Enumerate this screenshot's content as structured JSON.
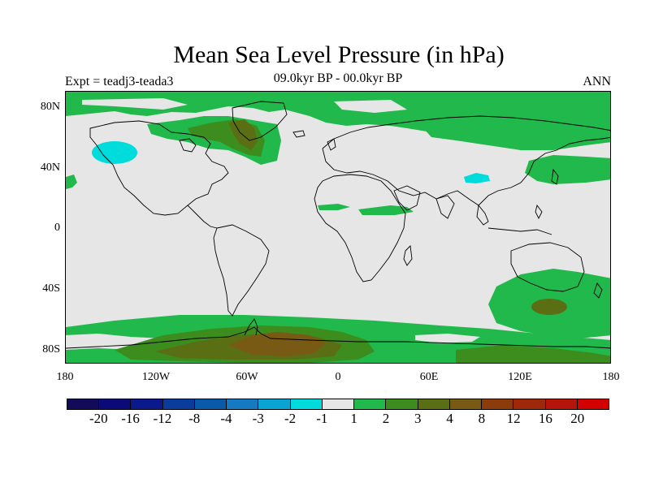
{
  "header": {
    "title": "Mean Sea Level Pressure (in hPa)",
    "experiment": "Expt = teadj3-teada3",
    "period": "09.0kyr BP - 00.0kyr BP",
    "season": "ANN"
  },
  "axes": {
    "latitude_labels": [
      "80N",
      "40N",
      "0",
      "40S",
      "80S"
    ],
    "longitude_labels": [
      "180",
      "120W",
      "60W",
      "0",
      "60E",
      "120E",
      "180"
    ]
  },
  "colorbar": {
    "labels": [
      "-20",
      "-16",
      "-12",
      "-8",
      "-4",
      "-3",
      "-2",
      "-1",
      "1",
      "2",
      "3",
      "4",
      "8",
      "12",
      "16",
      "20"
    ],
    "colors": [
      "#140a5a",
      "#0a0a78",
      "#0a1a8c",
      "#0a3c9c",
      "#0a5aaa",
      "#147ac2",
      "#0aa4d2",
      "#00dcdc",
      "#e6e6e6",
      "#21b94b",
      "#3c8c1e",
      "#5a6e14",
      "#785a14",
      "#8c3c0a",
      "#a0280a",
      "#b4140a",
      "#d20000"
    ]
  },
  "chart_data": {
    "type": "filled-contour-map",
    "title": "Mean Sea Level Pressure (in hPa)",
    "subtitle": "09.0kyr BP - 00.0kyr BP",
    "experiment": "Expt = teadj3-teada3",
    "season": "ANN",
    "xlim": [
      -180,
      180
    ],
    "ylim": [
      -90,
      90
    ],
    "contour_levels": [
      -20,
      -16,
      -12,
      -8,
      -4,
      -3,
      -2,
      -1,
      1,
      2,
      3,
      4,
      8,
      12,
      16,
      20
    ],
    "map_regions": [
      {
        "region": "Arctic band 70N-90N",
        "level": "1 to 2"
      },
      {
        "region": "Greenland / Baffin Bay",
        "level": "3 to 4"
      },
      {
        "region": "Canadian Arctic",
        "level": "2 to 3"
      },
      {
        "region": "North Pacific ~35N 150W",
        "level": "-2 to -1"
      },
      {
        "region": "Tibetan Plateau ~35N 90E",
        "level": "-2 to -1"
      },
      {
        "region": "Siberia / Arctic Ocean",
        "level": "1 to 2"
      },
      {
        "region": "Northwest Pacific ~40N 140E",
        "level": "1 to 2"
      },
      {
        "region": "Sahara ~10N",
        "level": "1 to 2"
      },
      {
        "region": "South Indian Ocean / Southern Australia",
        "level": "1 to 2"
      },
      {
        "region": "South of Australia ~55S 140E",
        "level": "2 to 3"
      },
      {
        "region": "Southern Ocean 60S-90S",
        "level": "1 to 2"
      },
      {
        "region": "Antarctic Peninsula / Weddell Sea",
        "level": "4 to 8"
      },
      {
        "region": "West Antarctica",
        "level": "3 to 4"
      }
    ],
    "background_level": "-1 to 1"
  }
}
